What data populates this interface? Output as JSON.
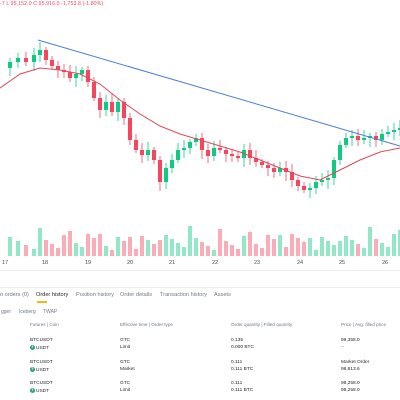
{
  "header": {
    "ohlc_text": "-7  L 95,152.0  C 95,916.0  -1,753.8 (-1.80%)"
  },
  "colors": {
    "up": "#0ecb81",
    "down": "#f6465d",
    "ma": "#e04858",
    "trendline": "#4a7fd4",
    "accent": "#f0b90b"
  },
  "chart": {
    "x_labels": [
      "17",
      "18",
      "19",
      "20",
      "21",
      "22",
      "23",
      "24",
      "25",
      "26"
    ],
    "trendline_label": "blue trendline",
    "ma_label": "moving average"
  },
  "tabs": {
    "open_orders": "n orders (0)",
    "order_history": "Order history",
    "position_history": "Position history",
    "order_details": "Order details",
    "transaction_history": "Transaction history",
    "assets": "Assets"
  },
  "subtabs": {
    "trigger": "gger",
    "iceberg": "Iceberg",
    "twap": "TWAP"
  },
  "columns": {
    "symbol": "Futures | Coin",
    "effective_time": "Effective time | Order type",
    "quantity": "Order quantity | Filled quantity",
    "price": "Price | Avg. filled price"
  },
  "orders": [
    {
      "symbol": "BTCUSDT",
      "coin": "USDT",
      "tif": "GTC",
      "type": "Limit",
      "qty": "0.135",
      "filled": "0.000 BTC",
      "price": "99,358.0",
      "avg": "--"
    },
    {
      "symbol": "BTCUSDT",
      "coin": "USDT",
      "tif": "GTC",
      "type": "Market",
      "qty": "0.111",
      "filled": "0.111 BTC",
      "price": "Market Order",
      "avg": "98,813.6"
    },
    {
      "symbol": "BTCUSDT",
      "coin": "USDT",
      "tif": "GTC",
      "type": "Limit",
      "qty": "0.111",
      "filled": "0.111 BTC",
      "price": "98,258.0",
      "avg": "98,258.0"
    }
  ]
}
